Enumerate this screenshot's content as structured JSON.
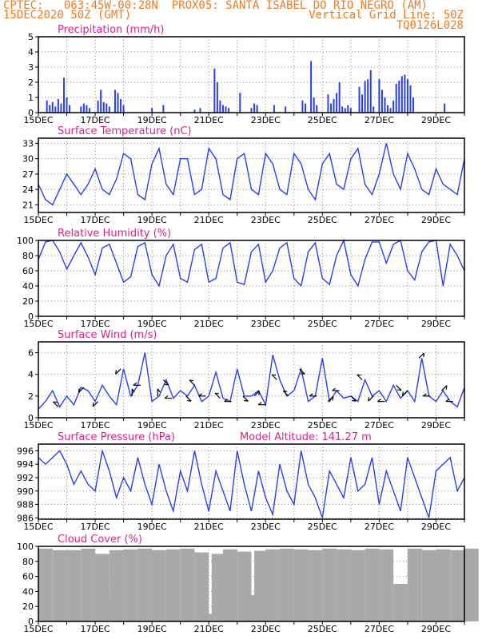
{
  "header": {
    "line1_left": "CPTEC:   063:45W-00:28N  PROX05: SANTA ISABEL DO RIO NEGRO (AM)",
    "line2_left": "15DEC2020 50Z (GMT)",
    "line2_right": "Vertical Grid Line: 50Z",
    "line3_right": "TQ0126L028"
  },
  "colors": {
    "header": "#f07a1e",
    "title": "#e0208a",
    "series": "#2a3ff0",
    "cloud": "#a9a9a9",
    "arrow": "#000000"
  },
  "date_ticks": [
    "15DEC",
    "17DEC",
    "19DEC",
    "21DEC",
    "23DEC",
    "25DEC",
    "27DEC",
    "29DEC"
  ],
  "chart_data": [
    {
      "type": "bar",
      "title": "Precipitation (mm/h)",
      "x_range": [
        0,
        15
      ],
      "ylim": [
        0,
        5
      ],
      "yticks": [
        0,
        1,
        2,
        3,
        4,
        5
      ],
      "x": [
        0.3,
        0.4,
        0.5,
        0.6,
        0.7,
        0.8,
        0.9,
        1.0,
        1.1,
        1.5,
        1.6,
        1.7,
        1.8,
        2.1,
        2.2,
        2.3,
        2.4,
        2.5,
        2.7,
        2.8,
        2.9,
        3.0,
        4.0,
        4.4,
        5.5,
        5.7,
        6.2,
        6.3,
        6.4,
        6.5,
        6.6,
        6.7,
        7.1,
        7.5,
        7.6,
        7.7,
        8.3,
        8.7,
        9.3,
        9.4,
        9.6,
        9.7,
        9.8,
        10.2,
        10.3,
        10.4,
        10.5,
        10.6,
        10.7,
        10.8,
        10.9,
        11.0,
        11.3,
        11.4,
        11.5,
        11.6,
        11.7,
        11.8,
        12.0,
        12.1,
        12.2,
        12.3,
        12.4,
        12.5,
        12.6,
        12.7,
        12.8,
        12.9,
        13.0,
        13.1,
        13.2,
        14.3
      ],
      "values": [
        0.8,
        0.5,
        0.7,
        0.4,
        0.9,
        0.6,
        2.3,
        1.0,
        0.5,
        0.4,
        0.6,
        0.5,
        0.3,
        0.8,
        1.5,
        0.7,
        0.6,
        0.4,
        1.5,
        1.3,
        0.9,
        0.5,
        0.3,
        0.5,
        0.2,
        0.3,
        2.9,
        2.0,
        0.8,
        0.5,
        0.4,
        0.3,
        1.3,
        0.3,
        0.6,
        0.5,
        0.5,
        0.4,
        0.8,
        0.6,
        3.4,
        1.0,
        0.5,
        1.2,
        0.6,
        0.9,
        1.3,
        2.0,
        0.4,
        0.3,
        0.5,
        0.3,
        1.7,
        1.2,
        2.1,
        2.2,
        2.8,
        0.4,
        2.2,
        1.5,
        1.0,
        0.5,
        0.3,
        0.8,
        1.9,
        2.1,
        2.4,
        2.5,
        2.2,
        1.8,
        1.0,
        0.6
      ]
    },
    {
      "type": "line",
      "title": "Surface Temperature (nC)",
      "x_range": [
        0,
        15
      ],
      "ylim": [
        19.5,
        34
      ],
      "yticks": [
        21,
        24,
        27,
        30,
        33
      ],
      "x": [
        0,
        0.25,
        0.5,
        0.75,
        1.0,
        1.25,
        1.5,
        1.75,
        2.0,
        2.25,
        2.5,
        2.75,
        3.0,
        3.25,
        3.5,
        3.75,
        4.0,
        4.25,
        4.5,
        4.75,
        5.0,
        5.25,
        5.5,
        5.75,
        6.0,
        6.25,
        6.5,
        6.75,
        7.0,
        7.25,
        7.5,
        7.75,
        8.0,
        8.25,
        8.5,
        8.75,
        9.0,
        9.25,
        9.5,
        9.75,
        10.0,
        10.25,
        10.5,
        10.75,
        11.0,
        11.25,
        11.5,
        11.75,
        12.0,
        12.25,
        12.5,
        12.75,
        13.0,
        13.25,
        13.5,
        13.75,
        14.0,
        14.25,
        14.5,
        14.75,
        15.0
      ],
      "y": [
        25,
        22,
        21,
        24,
        27,
        25,
        23,
        25,
        28,
        24,
        23,
        26,
        31,
        30,
        23,
        22,
        29,
        32,
        25,
        23,
        30,
        30,
        23,
        24,
        32,
        30,
        23,
        22,
        30,
        31,
        24,
        23,
        31,
        29,
        24,
        23,
        31,
        29,
        24,
        22,
        29,
        31,
        25,
        24,
        30,
        32,
        25,
        23,
        27,
        33,
        27,
        24,
        31,
        28,
        24,
        23,
        28,
        25,
        24,
        23,
        30
      ]
    },
    {
      "type": "line",
      "title": "Relative Humidity (%)",
      "x_range": [
        0,
        15
      ],
      "ylim": [
        0,
        100
      ],
      "yticks": [
        0,
        20,
        40,
        60,
        80,
        100
      ],
      "x": [
        0,
        0.25,
        0.5,
        0.75,
        1.0,
        1.25,
        1.5,
        1.75,
        2.0,
        2.25,
        2.5,
        2.75,
        3.0,
        3.25,
        3.5,
        3.75,
        4.0,
        4.25,
        4.5,
        4.75,
        5.0,
        5.25,
        5.5,
        5.75,
        6.0,
        6.25,
        6.5,
        6.75,
        7.0,
        7.25,
        7.5,
        7.75,
        8.0,
        8.25,
        8.5,
        8.75,
        9.0,
        9.25,
        9.5,
        9.75,
        10.0,
        10.25,
        10.5,
        10.75,
        11.0,
        11.25,
        11.5,
        11.75,
        12.0,
        12.25,
        12.5,
        12.75,
        13.0,
        13.25,
        13.5,
        13.75,
        14.0,
        14.25,
        14.5,
        14.75,
        15.0
      ],
      "y": [
        75,
        98,
        100,
        85,
        62,
        80,
        97,
        78,
        55,
        90,
        95,
        70,
        45,
        52,
        92,
        97,
        55,
        40,
        80,
        95,
        50,
        45,
        88,
        95,
        45,
        50,
        90,
        97,
        45,
        42,
        85,
        95,
        45,
        60,
        90,
        97,
        50,
        40,
        85,
        97,
        50,
        42,
        80,
        100,
        55,
        40,
        75,
        98,
        98,
        70,
        95,
        100,
        60,
        48,
        85,
        98,
        100,
        40,
        95,
        80,
        60
      ]
    },
    {
      "type": "line",
      "title": "Surface Wind (m/s)",
      "x_range": [
        0,
        15
      ],
      "ylim": [
        0,
        7
      ],
      "yticks": [
        0,
        2,
        4,
        6
      ],
      "x": [
        0,
        0.25,
        0.5,
        0.75,
        1.0,
        1.25,
        1.5,
        1.75,
        2.0,
        2.25,
        2.5,
        2.75,
        3.0,
        3.25,
        3.5,
        3.75,
        4.0,
        4.25,
        4.5,
        4.75,
        5.0,
        5.25,
        5.5,
        5.75,
        6.0,
        6.25,
        6.5,
        6.75,
        7.0,
        7.25,
        7.5,
        7.75,
        8.0,
        8.25,
        8.5,
        8.75,
        9.0,
        9.25,
        9.5,
        9.75,
        10.0,
        10.25,
        10.5,
        10.75,
        11.0,
        11.25,
        11.5,
        11.75,
        12.0,
        12.25,
        12.5,
        12.75,
        13.0,
        13.25,
        13.5,
        13.75,
        14.0,
        14.25,
        14.5,
        14.75,
        15.0
      ],
      "y": [
        0.8,
        1.5,
        2.5,
        1.0,
        2.0,
        1.2,
        2.8,
        2.5,
        1.5,
        3.0,
        2.0,
        1.2,
        4.5,
        2.0,
        3.0,
        6.0,
        1.5,
        2.0,
        3.5,
        1.8,
        2.5,
        2.0,
        3.0,
        1.5,
        2.0,
        4.2,
        1.8,
        1.5,
        4.5,
        2.0,
        2.0,
        2.5,
        1.2,
        5.8,
        3.5,
        2.0,
        2.5,
        4.5,
        1.5,
        2.0,
        5.5,
        1.5,
        2.5,
        1.8,
        2.0,
        1.5,
        3.5,
        2.0,
        2.5,
        1.5,
        3.0,
        1.8,
        2.5,
        1.5,
        5.5,
        2.0,
        1.5,
        2.5,
        1.5,
        1.0,
        2.8
      ],
      "arrows": [
        {
          "x": 0.7,
          "dx": -1,
          "dy": 1
        },
        {
          "x": 1.6,
          "dx": -1,
          "dy": -1
        },
        {
          "x": 2.1,
          "dx": -1,
          "dy": -1
        },
        {
          "x": 2.9,
          "dx": -1,
          "dy": -1
        },
        {
          "x": 3.3,
          "dx": 0,
          "dy": 1
        },
        {
          "x": 3.6,
          "dx": -1,
          "dy": 0
        },
        {
          "x": 4.2,
          "dx": 0,
          "dy": 1
        },
        {
          "x": 4.4,
          "dx": 1,
          "dy": -1
        },
        {
          "x": 4.7,
          "dx": -1,
          "dy": 0
        },
        {
          "x": 5.2,
          "dx": 1,
          "dy": -1
        },
        {
          "x": 5.5,
          "dx": -1,
          "dy": 1
        },
        {
          "x": 5.9,
          "dx": -1,
          "dy": 0
        },
        {
          "x": 6.4,
          "dx": -1,
          "dy": 1
        },
        {
          "x": 6.8,
          "dx": -1,
          "dy": 0
        },
        {
          "x": 7.2,
          "dx": 1,
          "dy": -1
        },
        {
          "x": 7.6,
          "dx": 1,
          "dy": 1
        },
        {
          "x": 8.0,
          "dx": -1,
          "dy": 0
        },
        {
          "x": 8.4,
          "dx": -1,
          "dy": 1
        },
        {
          "x": 8.8,
          "dx": -1,
          "dy": 1
        },
        {
          "x": 9.2,
          "dx": 1,
          "dy": -1
        },
        {
          "x": 9.8,
          "dx": -1,
          "dy": 0
        },
        {
          "x": 10.2,
          "dx": 1,
          "dy": 1
        },
        {
          "x": 10.6,
          "dx": -1,
          "dy": 0
        },
        {
          "x": 11.0,
          "dx": 1,
          "dy": -1
        },
        {
          "x": 11.4,
          "dx": -1,
          "dy": 1
        },
        {
          "x": 11.8,
          "dx": -1,
          "dy": -1
        },
        {
          "x": 12.2,
          "dx": -1,
          "dy": 0
        },
        {
          "x": 12.6,
          "dx": 1,
          "dy": -1
        },
        {
          "x": 13.0,
          "dx": -1,
          "dy": -1
        },
        {
          "x": 13.4,
          "dx": 1,
          "dy": 1
        },
        {
          "x": 13.8,
          "dx": -1,
          "dy": 0
        },
        {
          "x": 14.2,
          "dx": 1,
          "dy": 1
        },
        {
          "x": 14.6,
          "dx": -1,
          "dy": 0
        }
      ]
    },
    {
      "type": "line",
      "title": "Surface Pressure (hPa)",
      "annotation": "Model Altitude: 141.27 m",
      "x_range": [
        0,
        15
      ],
      "ylim": [
        985.8,
        997
      ],
      "yticks": [
        986,
        988,
        990,
        992,
        994,
        996
      ],
      "x": [
        0,
        0.25,
        0.5,
        0.75,
        1.0,
        1.25,
        1.5,
        1.75,
        2.0,
        2.25,
        2.5,
        2.75,
        3.0,
        3.25,
        3.5,
        3.75,
        4.0,
        4.25,
        4.5,
        4.75,
        5.0,
        5.25,
        5.5,
        5.75,
        6.0,
        6.25,
        6.5,
        6.75,
        7.0,
        7.25,
        7.5,
        7.75,
        8.0,
        8.25,
        8.5,
        8.75,
        9.0,
        9.25,
        9.5,
        9.75,
        10.0,
        10.25,
        10.5,
        10.75,
        11.0,
        11.25,
        11.5,
        11.75,
        12.0,
        12.25,
        12.5,
        12.75,
        13.0,
        13.25,
        13.5,
        13.75,
        14.0,
        14.25,
        14.5,
        14.75,
        15.0
      ],
      "y": [
        995,
        994,
        995,
        996,
        994,
        991,
        993,
        991,
        990,
        996,
        993,
        989,
        992,
        990,
        995,
        991,
        988,
        994,
        990,
        987,
        993,
        990,
        996,
        991,
        987,
        993,
        990,
        987,
        996,
        991,
        987,
        993,
        989,
        986.5,
        994,
        990,
        988,
        996,
        991,
        989,
        986,
        993,
        991,
        989,
        995,
        990,
        991,
        995,
        988,
        993,
        990,
        987,
        995,
        992,
        989,
        986,
        993,
        994,
        995,
        990,
        992
      ]
    },
    {
      "type": "bar",
      "title": "Cloud Cover (%)",
      "x_range": [
        0,
        15
      ],
      "ylim": [
        0,
        100
      ],
      "yticks": [
        0,
        20,
        40,
        60,
        80,
        100
      ],
      "x": [
        0,
        0.5,
        1.0,
        1.5,
        2.0,
        2.1,
        2.2,
        2.5,
        3.0,
        3.5,
        4.0,
        4.5,
        5.0,
        5.5,
        6.0,
        6.1,
        6.2,
        6.5,
        7.0,
        7.5,
        7.6,
        7.7,
        8.0,
        8.5,
        9.0,
        9.5,
        10.0,
        10.5,
        11.0,
        11.5,
        12.0,
        12.5,
        13.0,
        13.5,
        14.0,
        14.5,
        15.0
      ],
      "values": [
        97,
        95,
        95,
        97,
        90,
        5,
        30,
        95,
        96,
        97,
        95,
        96,
        97,
        92,
        10,
        90,
        5,
        96,
        93,
        35,
        94,
        5,
        96,
        97,
        96,
        95,
        97,
        96,
        95,
        97,
        96,
        50,
        97,
        95,
        96,
        95,
        97
      ]
    }
  ]
}
